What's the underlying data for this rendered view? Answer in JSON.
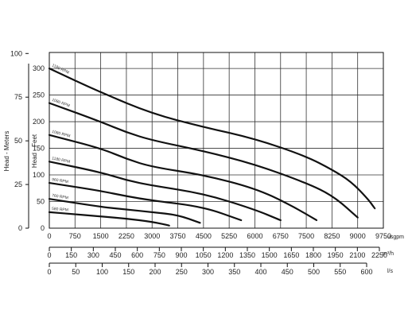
{
  "chart_data": {
    "type": "line",
    "ylabel_meters": "Head - Meters",
    "ylabel_feet": "Head - Feet",
    "y_feet_ticks": [
      "0",
      "50",
      "100",
      "150",
      "200",
      "250",
      "300"
    ],
    "y_meters_ticks": [
      "0",
      "25",
      "50",
      "75",
      "100"
    ],
    "ylim_feet": [
      0,
      330
    ],
    "x_usgpm": {
      "unit": "usgpm",
      "ticks": [
        "0",
        "750",
        "1500",
        "2250",
        "3000",
        "3750",
        "4500",
        "5250",
        "6000",
        "6750",
        "7500",
        "8250",
        "9000",
        "9750"
      ],
      "xlim": [
        0,
        9750
      ]
    },
    "x_m3h": {
      "unit": "m³/h",
      "ticks": [
        "0",
        "150",
        "300",
        "450",
        "600",
        "750",
        "900",
        "1050",
        "1200",
        "1350",
        "1500",
        "1650",
        "1800",
        "1950",
        "2100",
        "2250"
      ]
    },
    "x_ls": {
      "unit": "l/s",
      "ticks": [
        "0",
        "50",
        "100",
        "150",
        "200",
        "250",
        "300",
        "350",
        "400",
        "450",
        "500",
        "550",
        "600"
      ]
    },
    "grid": true,
    "series": [
      {
        "name": "1180 RPM",
        "x": [
          0,
          1500,
          3000,
          4500,
          6000,
          7500,
          8250,
          8800,
          9300,
          9500
        ],
        "y": [
          300,
          255,
          215,
          190,
          168,
          135,
          110,
          88,
          55,
          37
        ]
      },
      {
        "name": "1080 RPM",
        "x": [
          0,
          1500,
          2250,
          3000,
          4500,
          6000,
          7500,
          8300,
          9000
        ],
        "y": [
          235,
          200,
          180,
          165,
          145,
          120,
          85,
          60,
          20
        ]
      },
      {
        "name": "1080 RPM",
        "x": [
          0,
          1500,
          2250,
          3000,
          4500,
          6000,
          7000,
          7800
        ],
        "y": [
          175,
          150,
          130,
          115,
          100,
          75,
          45,
          15
        ]
      },
      {
        "name": "1180 RPM",
        "x": [
          0,
          1500,
          2250,
          3000,
          4500,
          6000,
          6750
        ],
        "y": [
          125,
          105,
          90,
          80,
          65,
          35,
          15
        ]
      },
      {
        "name": "960 RPM",
        "x": [
          0,
          1500,
          2250,
          3000,
          4500,
          5600
        ],
        "y": [
          85,
          70,
          60,
          52,
          40,
          15
        ]
      },
      {
        "name": "760 RPM",
        "x": [
          0,
          1500,
          2250,
          3000,
          3750,
          4400
        ],
        "y": [
          55,
          40,
          35,
          30,
          25,
          10
        ]
      },
      {
        "name": "580 RPM",
        "x": [
          0,
          750,
          1500,
          2250,
          3000,
          3500
        ],
        "y": [
          30,
          26,
          22,
          18,
          12,
          5
        ]
      }
    ]
  }
}
